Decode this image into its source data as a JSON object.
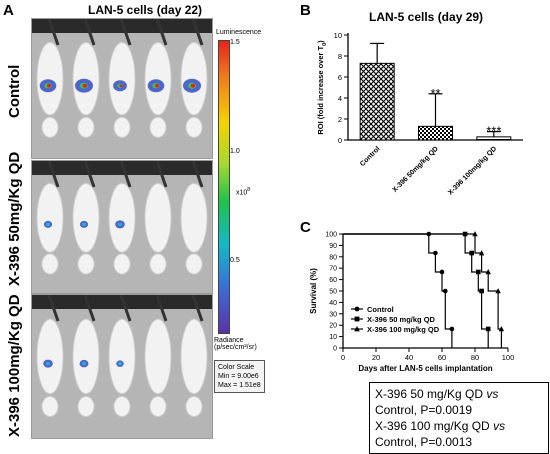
{
  "panelA": {
    "letter": "A",
    "title": "LAN-5 cells (day 22)",
    "rows": [
      {
        "label": "Control"
      },
      {
        "label": "X-396 50mg/Kg QD"
      },
      {
        "label": "X-396 100mg/Kg QD"
      }
    ],
    "colorscale": {
      "title": "Luminescence",
      "ticks": [
        "1.5",
        "1.0",
        "0.5"
      ],
      "multiplier": "x10",
      "multiplier_exp": "8",
      "unit_line1": "Radiance",
      "unit_line2": "(p/sec/cm²/sr)",
      "legend_line1": "Color Scale",
      "legend_line2": "Min = 9.00e6",
      "legend_line3": "Max = 1.51e8"
    }
  },
  "panelB": {
    "letter": "B",
    "title": "LAN-5 cells (day 29)",
    "ylabel_main": "ROI (fold increase over T",
    "ylabel_sub": "0",
    "ylabel_end": ")",
    "yticks": [
      "0",
      "2",
      "4",
      "6",
      "8",
      "10"
    ],
    "significance": [
      "",
      "**",
      "***"
    ]
  },
  "panelC": {
    "letter": "C",
    "ylabel": "Survival (%)",
    "xlabel": "Days after LAN-5 cells implantation",
    "yticks": [
      "0",
      "10",
      "20",
      "30",
      "40",
      "50",
      "60",
      "70",
      "80",
      "90",
      "100"
    ],
    "xticks": [
      "0",
      "20",
      "40",
      "60",
      "80",
      "100"
    ],
    "legend": [
      "Control",
      "X-396 50 mg/kg QD",
      "X-396 100 mg/kg QD"
    ]
  },
  "stats": {
    "line1_pre": "X-396 50 mg/Kg QD ",
    "line1_vs": "vs",
    "line1_post": " Control, P=0.0019",
    "line2_pre": "X-396 100 mg/Kg QD ",
    "line2_vs": "vs",
    "line2_post": " Control, P=0.0013"
  },
  "chart_data": [
    {
      "type": "bar",
      "categories": [
        "Control",
        "X-396 50mg/kg QD",
        "X-396 100mg/kg QD"
      ],
      "values": [
        7.3,
        1.3,
        0.3
      ],
      "errors": [
        1.9,
        3.1,
        0.5
      ],
      "title": "LAN-5 cells (day 29)",
      "xlabel": "",
      "ylabel": "ROI (fold increase over T0)",
      "ylim": [
        0,
        10
      ],
      "grid": false
    },
    {
      "type": "line",
      "title": "",
      "xlabel": "Days after LAN-5 cells implantation",
      "ylabel": "Survival (%)",
      "xlim": [
        0,
        100
      ],
      "ylim": [
        0,
        100
      ],
      "legend": "top-left",
      "series": [
        {
          "name": "Control",
          "x": [
            0,
            52,
            52,
            56,
            56,
            60,
            60,
            62,
            62,
            66,
            66
          ],
          "y": [
            100,
            100,
            83.3,
            83.3,
            66.7,
            66.7,
            50,
            50,
            16.7,
            16.7,
            0
          ]
        },
        {
          "name": "X-396 50 mg/kg QD",
          "x": [
            0,
            74,
            74,
            78,
            78,
            82,
            82,
            84,
            84,
            88,
            88
          ],
          "y": [
            100,
            100,
            83.3,
            83.3,
            66.7,
            66.7,
            50,
            50,
            16.7,
            16.7,
            0
          ]
        },
        {
          "name": "X-396 100 mg/kg QD",
          "x": [
            0,
            80,
            80,
            84,
            84,
            88,
            88,
            94,
            94,
            96,
            96
          ],
          "y": [
            100,
            100,
            83.3,
            83.3,
            66.7,
            66.7,
            50,
            50,
            16.7,
            16.7,
            0
          ]
        }
      ]
    }
  ]
}
